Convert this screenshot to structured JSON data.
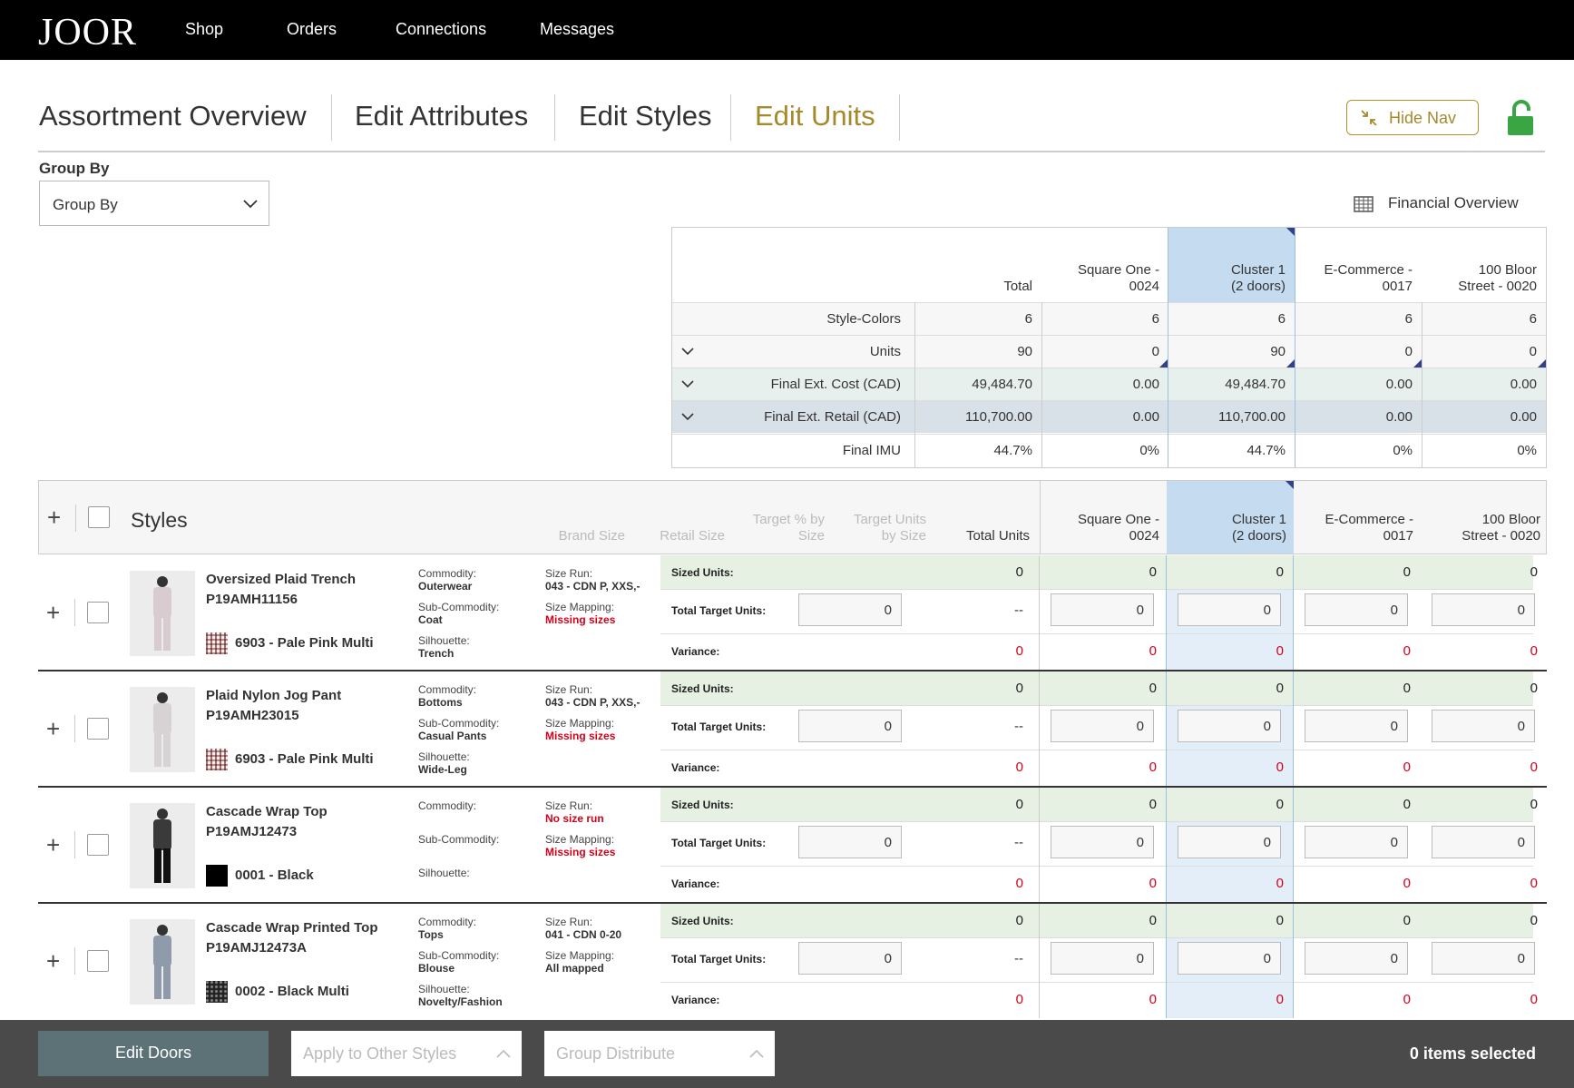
{
  "nav": {
    "logo": "JOOR",
    "links": [
      "Shop",
      "Orders",
      "Connections",
      "Messages"
    ]
  },
  "tabs": [
    {
      "label": "Assortment Overview",
      "active": false
    },
    {
      "label": "Edit Attributes",
      "active": false
    },
    {
      "label": "Edit Styles",
      "active": false
    },
    {
      "label": "Edit Units",
      "active": true
    }
  ],
  "hide_nav_label": "Hide Nav",
  "lock_icon": "unlocked-padlock",
  "group_by": {
    "label": "Group By",
    "value": "Group By"
  },
  "financial_overview_label": "Financial Overview",
  "summary": {
    "columns": [
      "Total",
      "Square One - 0024",
      "Cluster 1 (2 doors)",
      "E-Commerce - 0017",
      "100 Bloor Street - 0020"
    ],
    "columns_split": [
      [
        "Total"
      ],
      [
        "Square One -",
        "0024"
      ],
      [
        "Cluster 1",
        "(2 doors)"
      ],
      [
        "E-Commerce -",
        "0017"
      ],
      [
        "100 Bloor",
        "Street - 0020"
      ]
    ],
    "rows": [
      {
        "label": "Style-Colors",
        "values": [
          "6",
          "6",
          "6",
          "6",
          "6"
        ]
      },
      {
        "label": "Units",
        "values": [
          "90",
          "0",
          "90",
          "0",
          "0"
        ]
      },
      {
        "label": "Final Ext. Cost (CAD)",
        "values": [
          "49,484.70",
          "0.00",
          "49,484.70",
          "0.00",
          "0.00"
        ]
      },
      {
        "label": "Final Ext. Retail (CAD)",
        "values": [
          "110,700.00",
          "0.00",
          "110,700.00",
          "0.00",
          "0.00"
        ]
      },
      {
        "label": "Final IMU",
        "values": [
          "44.7%",
          "0%",
          "44.7%",
          "0%",
          "0%"
        ]
      }
    ]
  },
  "styles_header": {
    "title": "Styles",
    "brand_size": "Brand Size",
    "retail_size": "Retail Size",
    "target_pct": [
      "Target % by",
      "Size"
    ],
    "target_units": [
      "Target Units",
      "by Size"
    ],
    "total_units": "Total Units",
    "doors": [
      [
        "Square One -",
        "0024"
      ],
      [
        "Cluster 1",
        "(2 doors)"
      ],
      [
        "E-Commerce -",
        "0017"
      ],
      [
        "100 Bloor",
        "Street - 0020"
      ]
    ]
  },
  "row_labels": {
    "sized_units": "Sized Units:",
    "total_target_units": "Total Target Units:",
    "variance": "Variance:",
    "commodity": "Commodity:",
    "sub_commodity": "Sub-Commodity:",
    "silhouette": "Silhouette:",
    "size_run": "Size Run:",
    "size_mapping": "Size Mapping:",
    "dash": "--"
  },
  "products": [
    {
      "name": "Oversized Plaid Trench",
      "sku": "P19AMH11156",
      "color": "6903 - Pale Pink Multi",
      "swatch": "plaid",
      "commodity": "Outerwear",
      "sub_commodity": "Coat",
      "silhouette": "Trench",
      "size_run": "043 - CDN P, XXS,-",
      "size_run_missing": false,
      "size_mapping": "Missing sizes",
      "size_mapping_missing": true,
      "sized_units": [
        "0",
        "0",
        "0",
        "0",
        "0"
      ],
      "target_units": [
        "0",
        "0",
        "0",
        "0",
        "0"
      ],
      "variance": [
        "0",
        "0",
        "0",
        "0",
        "0"
      ]
    },
    {
      "name": "Plaid Nylon Jog Pant",
      "sku": "P19AMH23015",
      "color": "6903 - Pale Pink Multi",
      "swatch": "plaid",
      "commodity": "Bottoms",
      "sub_commodity": "Casual Pants",
      "silhouette": "Wide-Leg",
      "size_run": "043 - CDN P, XXS,-",
      "size_run_missing": false,
      "size_mapping": "Missing sizes",
      "size_mapping_missing": true,
      "sized_units": [
        "0",
        "0",
        "0",
        "0",
        "0"
      ],
      "target_units": [
        "0",
        "0",
        "0",
        "0",
        "0"
      ],
      "variance": [
        "0",
        "0",
        "0",
        "0",
        "0"
      ]
    },
    {
      "name": "Cascade Wrap Top",
      "sku": "P19AMJ12473",
      "color": "0001 - Black",
      "swatch": "black",
      "commodity": "",
      "sub_commodity": "",
      "silhouette": "",
      "size_run": "No size run",
      "size_run_missing": true,
      "size_mapping": "Missing sizes",
      "size_mapping_missing": true,
      "sized_units": [
        "0",
        "0",
        "0",
        "0",
        "0"
      ],
      "target_units": [
        "0",
        "0",
        "0",
        "0",
        "0"
      ],
      "variance": [
        "0",
        "0",
        "0",
        "0",
        "0"
      ]
    },
    {
      "name": "Cascade Wrap Printed Top",
      "sku": "P19AMJ12473A",
      "color": "0002 - Black Multi",
      "swatch": "print",
      "commodity": "Tops",
      "sub_commodity": "Blouse",
      "silhouette": "Novelty/Fashion",
      "size_run": "041 - CDN 0-20",
      "size_run_missing": false,
      "size_mapping": "All mapped",
      "size_mapping_missing": false,
      "sized_units": [
        "0",
        "0",
        "0",
        "0",
        "0"
      ],
      "target_units": [
        "0",
        "0",
        "0",
        "0",
        "0"
      ],
      "variance": [
        "0",
        "0",
        "0",
        "0",
        "0"
      ]
    }
  ],
  "bottom": {
    "edit_doors": "Edit Doors",
    "apply_other": "Apply to Other Styles",
    "group_distribute": "Group Distribute",
    "selected": "0 items selected"
  },
  "colors": {
    "accent_gold": "#a48a2c",
    "lock_green": "#3aa643",
    "highlight_blue": "#c5dcf0",
    "sized_green": "#e6f1e3",
    "variance_red": "#d0021b",
    "bottom_bar": "#4a4a4a",
    "edit_doors_bg": "#5d7277"
  }
}
